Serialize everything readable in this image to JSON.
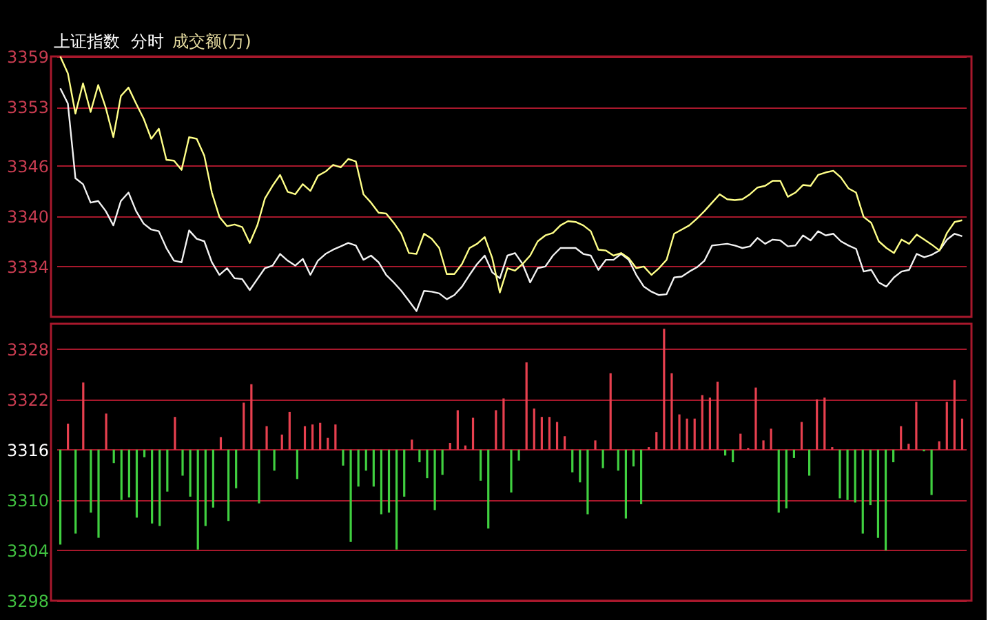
{
  "chart_data": [
    {
      "type": "line",
      "title": "上证指数",
      "subtitle": "分时",
      "annotations": [
        "成交额(万)"
      ],
      "categories": [
        null,
        null,
        null,
        null,
        null,
        null,
        null,
        null,
        null,
        null,
        null,
        null,
        null,
        null,
        null,
        null,
        null,
        null,
        null,
        null,
        null,
        null,
        null,
        null,
        null,
        null,
        null,
        null,
        null,
        null,
        null,
        null,
        null,
        null,
        null,
        null,
        null,
        null,
        null,
        null,
        null,
        null,
        null,
        null,
        null,
        null,
        null,
        null,
        null,
        null,
        null,
        null,
        null,
        null,
        null,
        null,
        null,
        null,
        null,
        null,
        null,
        null,
        null,
        null,
        null,
        null,
        null,
        null,
        null,
        null,
        null,
        null,
        null,
        null,
        null,
        null,
        null,
        null,
        null,
        null,
        null,
        null,
        null,
        null,
        null,
        null,
        null,
        null,
        null,
        null,
        null,
        null,
        null,
        null,
        null,
        null,
        null,
        null,
        null,
        null,
        null,
        null,
        null,
        null,
        null,
        null,
        null,
        null,
        null,
        null,
        null,
        null,
        null,
        null,
        null,
        null,
        null,
        null,
        null,
        null
      ],
      "ylim": [
        3328,
        3359
      ],
      "yticks": [
        3334,
        3340,
        3346,
        3353,
        3359
      ],
      "tick_labels": "y",
      "grid": "y",
      "marker": "none",
      "line_style": "solid",
      "series": [
        {
          "color": "#f2f2f2",
          "values": [
            3355.2,
            3353.4,
            3344.5,
            3343.8,
            3341.6,
            3341.8,
            3340.6,
            3338.9,
            3341.8,
            3342.8,
            3340.6,
            3339.1,
            3338.4,
            3338.2,
            3336.2,
            3334.7,
            3334.5,
            3338.3,
            3337.3,
            3337.0,
            3334.5,
            3333.0,
            3333.8,
            3332.6,
            3332.5,
            3331.2,
            3332.5,
            3333.8,
            3334.1,
            3335.5,
            3334.7,
            3334.1,
            3334.9,
            3333.0,
            3334.7,
            3335.5,
            3336.0,
            3336.4,
            3336.8,
            3336.5,
            3334.8,
            3335.3,
            3334.5,
            3333.0,
            3332.1,
            3331.1,
            3329.9,
            3328.7,
            3331.1,
            3331.0,
            3330.8,
            3330.1,
            3330.6,
            3331.6,
            3333.0,
            3334.3,
            3335.3,
            3333.3,
            3332.6,
            3335.3,
            3335.6,
            3334.3,
            3332.1,
            3333.8,
            3334.0,
            3335.3,
            3336.2,
            3336.2,
            3336.2,
            3335.5,
            3335.3,
            3333.6,
            3334.8,
            3334.8,
            3335.5,
            3334.8,
            3333.0,
            3331.6,
            3331.0,
            3330.6,
            3330.7,
            3332.7,
            3332.8,
            3333.4,
            3333.9,
            3334.7,
            3336.5,
            3336.6,
            3336.7,
            3336.5,
            3336.2,
            3336.4,
            3337.4,
            3336.7,
            3337.2,
            3337.1,
            3336.4,
            3336.5,
            3337.7,
            3337.1,
            3338.2,
            3337.7,
            3337.9,
            3337.0,
            3336.5,
            3336.1,
            3333.4,
            3333.6,
            3332.1,
            3331.6,
            3332.7,
            3333.4,
            3333.6,
            3335.5,
            3335.1,
            3335.4,
            3335.9,
            3337.2,
            3337.9,
            3337.6
          ]
        },
        {
          "color": "#ffff88",
          "values": [
            3359.0,
            3357.0,
            3352.2,
            3355.8,
            3352.4,
            3355.6,
            3352.9,
            3349.4,
            3354.3,
            3355.3,
            3353.4,
            3351.6,
            3349.2,
            3350.4,
            3346.7,
            3346.6,
            3345.5,
            3349.4,
            3349.2,
            3347.2,
            3342.8,
            3339.9,
            3338.8,
            3339.0,
            3338.7,
            3336.8,
            3338.9,
            3342.1,
            3343.6,
            3344.9,
            3342.9,
            3342.6,
            3343.8,
            3343.0,
            3344.8,
            3345.3,
            3346.1,
            3345.8,
            3346.8,
            3346.5,
            3342.6,
            3341.6,
            3340.4,
            3340.3,
            3339.2,
            3337.9,
            3335.6,
            3335.5,
            3337.9,
            3337.3,
            3336.2,
            3333.1,
            3333.1,
            3334.3,
            3336.2,
            3336.7,
            3337.5,
            3335.0,
            3330.9,
            3333.8,
            3333.5,
            3334.3,
            3335.3,
            3337.0,
            3337.7,
            3338.0,
            3338.9,
            3339.4,
            3339.3,
            3338.9,
            3338.2,
            3336.0,
            3335.9,
            3335.3,
            3335.6,
            3335.0,
            3333.8,
            3334.0,
            3333.0,
            3333.8,
            3334.8,
            3337.9,
            3338.4,
            3338.9,
            3339.7,
            3340.6,
            3341.6,
            3342.6,
            3342.0,
            3341.9,
            3342.0,
            3342.6,
            3343.4,
            3343.6,
            3344.2,
            3344.2,
            3342.3,
            3342.8,
            3343.7,
            3343.6,
            3344.9,
            3345.2,
            3345.4,
            3344.6,
            3343.3,
            3342.8,
            3339.9,
            3339.2,
            3337.0,
            3336.2,
            3335.6,
            3337.2,
            3336.7,
            3337.8,
            3337.2,
            3336.6,
            3335.9,
            3338.0,
            3339.3,
            3339.5
          ]
        }
      ]
    },
    {
      "type": "bar",
      "categories": [
        null,
        null,
        null,
        null,
        null,
        null,
        null,
        null,
        null,
        null,
        null,
        null,
        null,
        null,
        null,
        null,
        null,
        null,
        null,
        null,
        null,
        null,
        null,
        null,
        null,
        null,
        null,
        null,
        null,
        null,
        null,
        null,
        null,
        null,
        null,
        null,
        null,
        null,
        null,
        null,
        null,
        null,
        null,
        null,
        null,
        null,
        null,
        null,
        null,
        null,
        null,
        null,
        null,
        null,
        null,
        null,
        null,
        null,
        null,
        null,
        null,
        null,
        null,
        null,
        null,
        null,
        null,
        null,
        null,
        null,
        null,
        null,
        null,
        null,
        null,
        null,
        null,
        null,
        null,
        null,
        null,
        null,
        null,
        null,
        null,
        null,
        null,
        null,
        null,
        null,
        null,
        null,
        null,
        null,
        null,
        null,
        null,
        null,
        null,
        null,
        null,
        null,
        null,
        null,
        null,
        null,
        null,
        null,
        null,
        null,
        null,
        null,
        null,
        null,
        null,
        null,
        null,
        null,
        null
      ],
      "ylim": [
        3298,
        3331
      ],
      "yticks": [
        3298,
        3304,
        3310,
        3316,
        3322,
        3328
      ],
      "tick_labels": "y",
      "grid": "y",
      "values": [
        -11.3,
        3.1,
        -10.0,
        8.0,
        -7.5,
        -10.5,
        4.3,
        -1.6,
        -6.0,
        -5.7,
        -8.1,
        -0.9,
        -8.8,
        -9.1,
        -5.0,
        3.9,
        -3.1,
        -5.6,
        -11.9,
        -9.1,
        -6.9,
        1.5,
        -8.5,
        -4.6,
        5.6,
        7.8,
        -6.4,
        2.8,
        -2.5,
        1.8,
        4.5,
        -3.5,
        2.8,
        3.0,
        3.2,
        1.4,
        3.0,
        -1.9,
        -11.0,
        -4.4,
        -2.5,
        -4.4,
        -7.7,
        -7.5,
        -11.9,
        -5.6,
        1.2,
        -1.5,
        -3.4,
        -7.2,
        -3.0,
        0.8,
        4.7,
        0.5,
        3.8,
        -3.7,
        -9.4,
        4.7,
        6.1,
        -5.1,
        -1.3,
        10.4,
        4.9,
        3.9,
        3.9,
        3.3,
        1.6,
        -2.7,
        -3.9,
        -7.7,
        1.1,
        -2.2,
        9.1,
        -2.5,
        -8.2,
        -2.0,
        -6.5,
        0.3,
        2.1,
        14.4,
        9.1,
        4.2,
        3.7,
        3.7,
        6.5,
        6.2,
        8.1,
        -0.7,
        -1.5,
        1.9,
        0.2,
        7.4,
        1.1,
        2.5,
        -7.5,
        -7.0,
        -1.0,
        3.3,
        -3.1,
        6.0,
        6.2,
        0.3,
        -5.8,
        -6.0,
        -6.3,
        -10.0,
        -6.6,
        -10.5,
        -12.0,
        -1.5,
        2.8,
        0.7,
        5.7,
        -0.2,
        -5.4,
        1.0,
        5.7,
        8.3,
        3.7
      ],
      "base": [
        3316,
        3316,
        3316,
        3316,
        3316,
        3316,
        3316,
        3316,
        3316,
        3316,
        3316,
        3316,
        3316,
        3316,
        3316,
        3316,
        3316,
        3316,
        3316,
        3316,
        3316,
        3316,
        3316,
        3316,
        3316,
        3316,
        3316,
        3316,
        3316,
        3316,
        3316,
        3316,
        3316,
        3316,
        3316,
        3316,
        3316,
        3316,
        3316,
        3316,
        3316,
        3316,
        3316,
        3316,
        3316,
        3316,
        3316,
        3316,
        3316,
        3316,
        3316,
        3316,
        3316,
        3316,
        3316,
        3316,
        3316,
        3316,
        3316,
        3316,
        3316,
        3316,
        3316,
        3316,
        3316,
        3316,
        3316,
        3316,
        3316,
        3316,
        3316,
        3316,
        3316,
        3316,
        3316,
        3316,
        3316,
        3316,
        3316,
        3316,
        3316,
        3316,
        3316,
        3316,
        3316,
        3316,
        3316,
        3316,
        3316,
        3316,
        3316,
        3316,
        3316,
        3316,
        3316,
        3316,
        3316,
        3316,
        3316,
        3316,
        3316,
        3316,
        3316,
        3316,
        3316,
        3316,
        3316,
        3316,
        3316,
        3316,
        3316,
        3316,
        3316,
        3316,
        3316,
        3316,
        3316,
        3316,
        3316
      ],
      "colors": [
        "#40d040",
        "#e8404f",
        "#40d040",
        "#e8404f",
        "#40d040",
        "#40d040",
        "#e8404f",
        "#40d040",
        "#40d040",
        "#40d040",
        "#40d040",
        "#40d040",
        "#40d040",
        "#40d040",
        "#40d040",
        "#e8404f",
        "#40d040",
        "#40d040",
        "#40d040",
        "#40d040",
        "#40d040",
        "#e8404f",
        "#40d040",
        "#40d040",
        "#e8404f",
        "#e8404f",
        "#40d040",
        "#e8404f",
        "#40d040",
        "#e8404f",
        "#e8404f",
        "#40d040",
        "#e8404f",
        "#e8404f",
        "#e8404f",
        "#e8404f",
        "#e8404f",
        "#40d040",
        "#40d040",
        "#40d040",
        "#40d040",
        "#40d040",
        "#40d040",
        "#40d040",
        "#40d040",
        "#40d040",
        "#e8404f",
        "#40d040",
        "#40d040",
        "#40d040",
        "#40d040",
        "#e8404f",
        "#e8404f",
        "#e8404f",
        "#e8404f",
        "#40d040",
        "#40d040",
        "#e8404f",
        "#e8404f",
        "#40d040",
        "#40d040",
        "#e8404f",
        "#e8404f",
        "#e8404f",
        "#e8404f",
        "#e8404f",
        "#e8404f",
        "#40d040",
        "#40d040",
        "#40d040",
        "#e8404f",
        "#40d040",
        "#e8404f",
        "#40d040",
        "#40d040",
        "#40d040",
        "#40d040",
        "#e8404f",
        "#e8404f",
        "#e8404f",
        "#e8404f",
        "#e8404f",
        "#e8404f",
        "#e8404f",
        "#e8404f",
        "#e8404f",
        "#e8404f",
        "#40d040",
        "#40d040",
        "#e8404f",
        "#e8404f",
        "#e8404f",
        "#e8404f",
        "#e8404f",
        "#40d040",
        "#40d040",
        "#40d040",
        "#e8404f",
        "#40d040",
        "#e8404f",
        "#e8404f",
        "#e8404f",
        "#40d040",
        "#40d040",
        "#40d040",
        "#40d040",
        "#40d040",
        "#40d040",
        "#40d040",
        "#40d040",
        "#e8404f",
        "#e8404f",
        "#e8404f",
        "#40d040",
        "#40d040",
        "#e8404f",
        "#e8404f",
        "#e8404f",
        "#e8404f"
      ]
    }
  ]
}
